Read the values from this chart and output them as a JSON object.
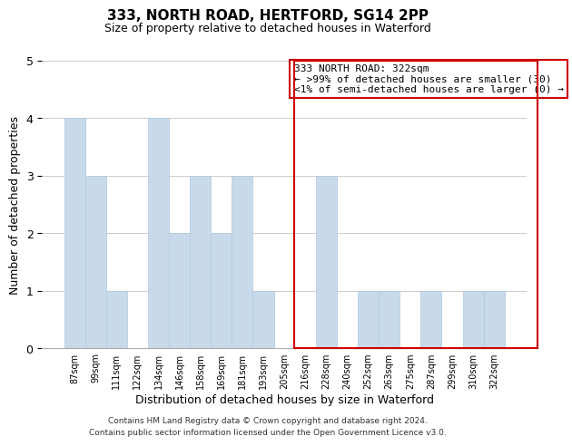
{
  "title": "333, NORTH ROAD, HERTFORD, SG14 2PP",
  "subtitle": "Size of property relative to detached houses in Waterford",
  "xlabel": "Distribution of detached houses by size in Waterford",
  "ylabel": "Number of detached properties",
  "footer_line1": "Contains HM Land Registry data © Crown copyright and database right 2024.",
  "footer_line2": "Contains public sector information licensed under the Open Government Licence v3.0.",
  "bin_labels": [
    "87sqm",
    "99sqm",
    "111sqm",
    "122sqm",
    "134sqm",
    "146sqm",
    "158sqm",
    "169sqm",
    "181sqm",
    "193sqm",
    "205sqm",
    "216sqm",
    "228sqm",
    "240sqm",
    "252sqm",
    "263sqm",
    "275sqm",
    "287sqm",
    "299sqm",
    "310sqm",
    "322sqm"
  ],
  "bar_heights": [
    4,
    3,
    1,
    0,
    4,
    2,
    3,
    2,
    3,
    1,
    0,
    0,
    3,
    0,
    1,
    1,
    0,
    1,
    0,
    1,
    1
  ],
  "bar_color": "#c8daea",
  "bar_edge_color": "#b0c8e0",
  "highlight_bin_index": 20,
  "highlight_edge_color": "#cc0000",
  "box_text_line1": "333 NORTH ROAD: 322sqm",
  "box_text_line2": "← >99% of detached houses are smaller (30)",
  "box_text_line3": "<1% of semi-detached houses are larger (0) →",
  "box_edge_color": "#cc0000",
  "box_fill_color": "#ffffff",
  "ylim": [
    0,
    5
  ],
  "yticks": [
    0,
    1,
    2,
    3,
    4,
    5
  ],
  "grid_color": "#cccccc",
  "background_color": "#ffffff",
  "title_fontsize": 11,
  "subtitle_fontsize": 9
}
